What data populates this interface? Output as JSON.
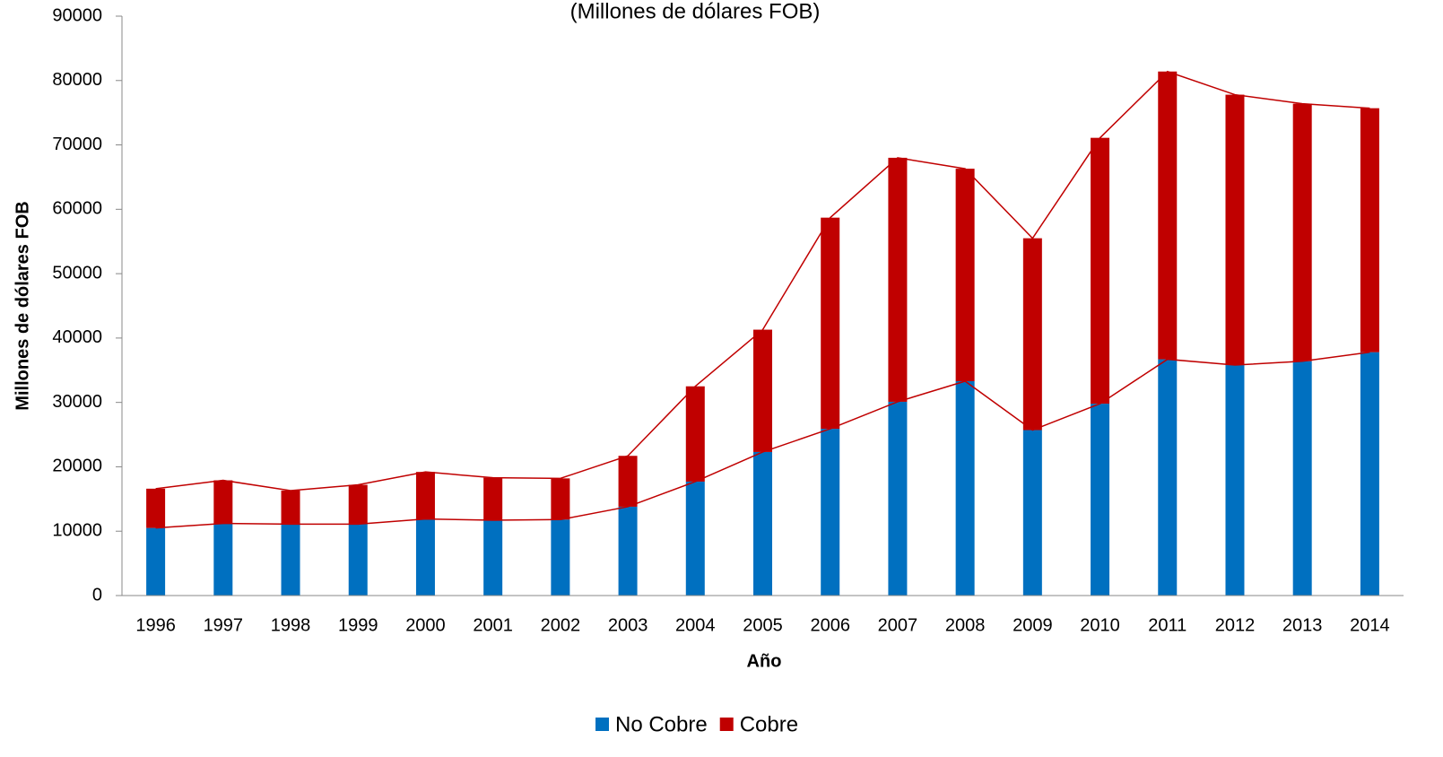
{
  "chart_data": {
    "type": "stacked_bar",
    "title": "(Millones de dólares FOB)",
    "x_label": "Año",
    "y_label": "Millones de dólares FOB",
    "categories": [
      "1996",
      "1997",
      "1998",
      "1999",
      "2000",
      "2001",
      "2002",
      "2003",
      "2004",
      "2005",
      "2006",
      "2007",
      "2008",
      "2009",
      "2010",
      "2011",
      "2012",
      "2013",
      "2014"
    ],
    "series": [
      {
        "name": "No Cobre",
        "color": "#0070c0",
        "values": [
          10500,
          11200,
          11100,
          11100,
          11900,
          11700,
          11800,
          13800,
          17700,
          22300,
          25900,
          30100,
          33300,
          25700,
          29800,
          36700,
          35800,
          36400,
          37800
        ]
      },
      {
        "name": "Cobre",
        "color": "#c00000",
        "values": [
          6100,
          6700,
          5200,
          6100,
          7300,
          6600,
          6400,
          7900,
          14800,
          19000,
          32800,
          37900,
          33000,
          29800,
          41300,
          44700,
          42000,
          40000,
          37900
        ]
      }
    ],
    "line_color": "#c00000",
    "ylim": [
      0,
      90000
    ],
    "yticks": [
      0,
      10000,
      20000,
      30000,
      40000,
      50000,
      60000,
      70000,
      80000,
      90000
    ],
    "legend": "bottom"
  }
}
